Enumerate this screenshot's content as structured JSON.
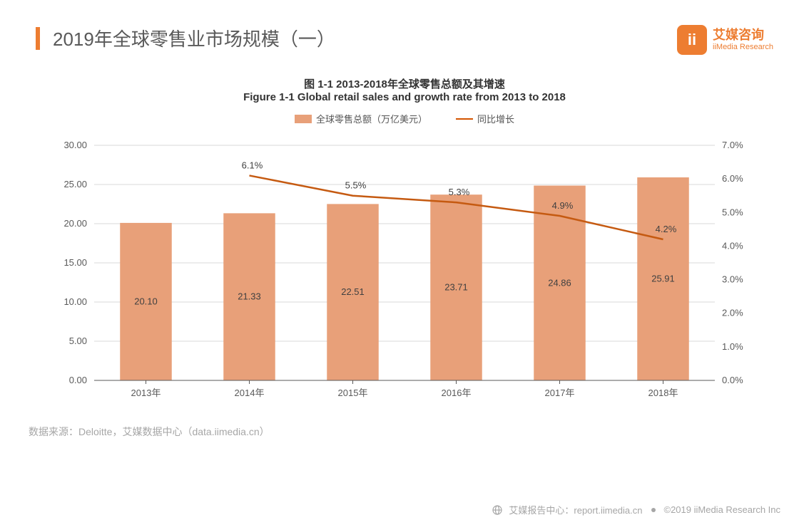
{
  "header": {
    "title": "2019年全球零售业市场规模（一）",
    "logo_cn": "艾媒咨询",
    "logo_en": "iiMedia Research"
  },
  "chart": {
    "type": "bar+line",
    "title_cn": "图 1-1 2013-2018年全球零售总额及其增速",
    "title_en": "Figure 1-1 Global retail sales and growth rate from 2013 to 2018",
    "legend_bar": "全球零售总额（万亿美元）",
    "legend_line": "同比增长",
    "categories": [
      "2013年",
      "2014年",
      "2015年",
      "2016年",
      "2017年",
      "2018年"
    ],
    "bar_values": [
      20.1,
      21.33,
      22.51,
      23.71,
      24.86,
      25.91
    ],
    "bar_labels": [
      "20.10",
      "21.33",
      "22.51",
      "23.71",
      "24.86",
      "25.91"
    ],
    "line_values": [
      null,
      6.1,
      5.5,
      5.3,
      4.9,
      4.2
    ],
    "line_labels": [
      "",
      "6.1%",
      "5.5%",
      "5.3%",
      "4.9%",
      "4.2%"
    ],
    "y_left": {
      "min": 0,
      "max": 30,
      "step": 5,
      "ticks": [
        "0.00",
        "5.00",
        "10.00",
        "15.00",
        "20.00",
        "25.00",
        "30.00"
      ]
    },
    "y_right": {
      "min": 0,
      "max": 7,
      "step": 1,
      "ticks": [
        "0.0%",
        "1.0%",
        "2.0%",
        "3.0%",
        "4.0%",
        "5.0%",
        "6.0%",
        "7.0%"
      ]
    },
    "colors": {
      "bar": "#e8a079",
      "line": "#c55a11",
      "grid": "#d9d9d9",
      "axis_text": "#595959",
      "background": "#ffffff"
    },
    "bar_width": 0.5,
    "title_fontsize": 15,
    "label_fontsize": 13,
    "tick_fontsize": 13
  },
  "source": "数据来源：Deloitte，艾媒数据中心（data.iimedia.cn）",
  "footer": {
    "left": "艾媒报告中心：report.iimedia.cn",
    "right": "©2019  iiMedia Research Inc"
  }
}
